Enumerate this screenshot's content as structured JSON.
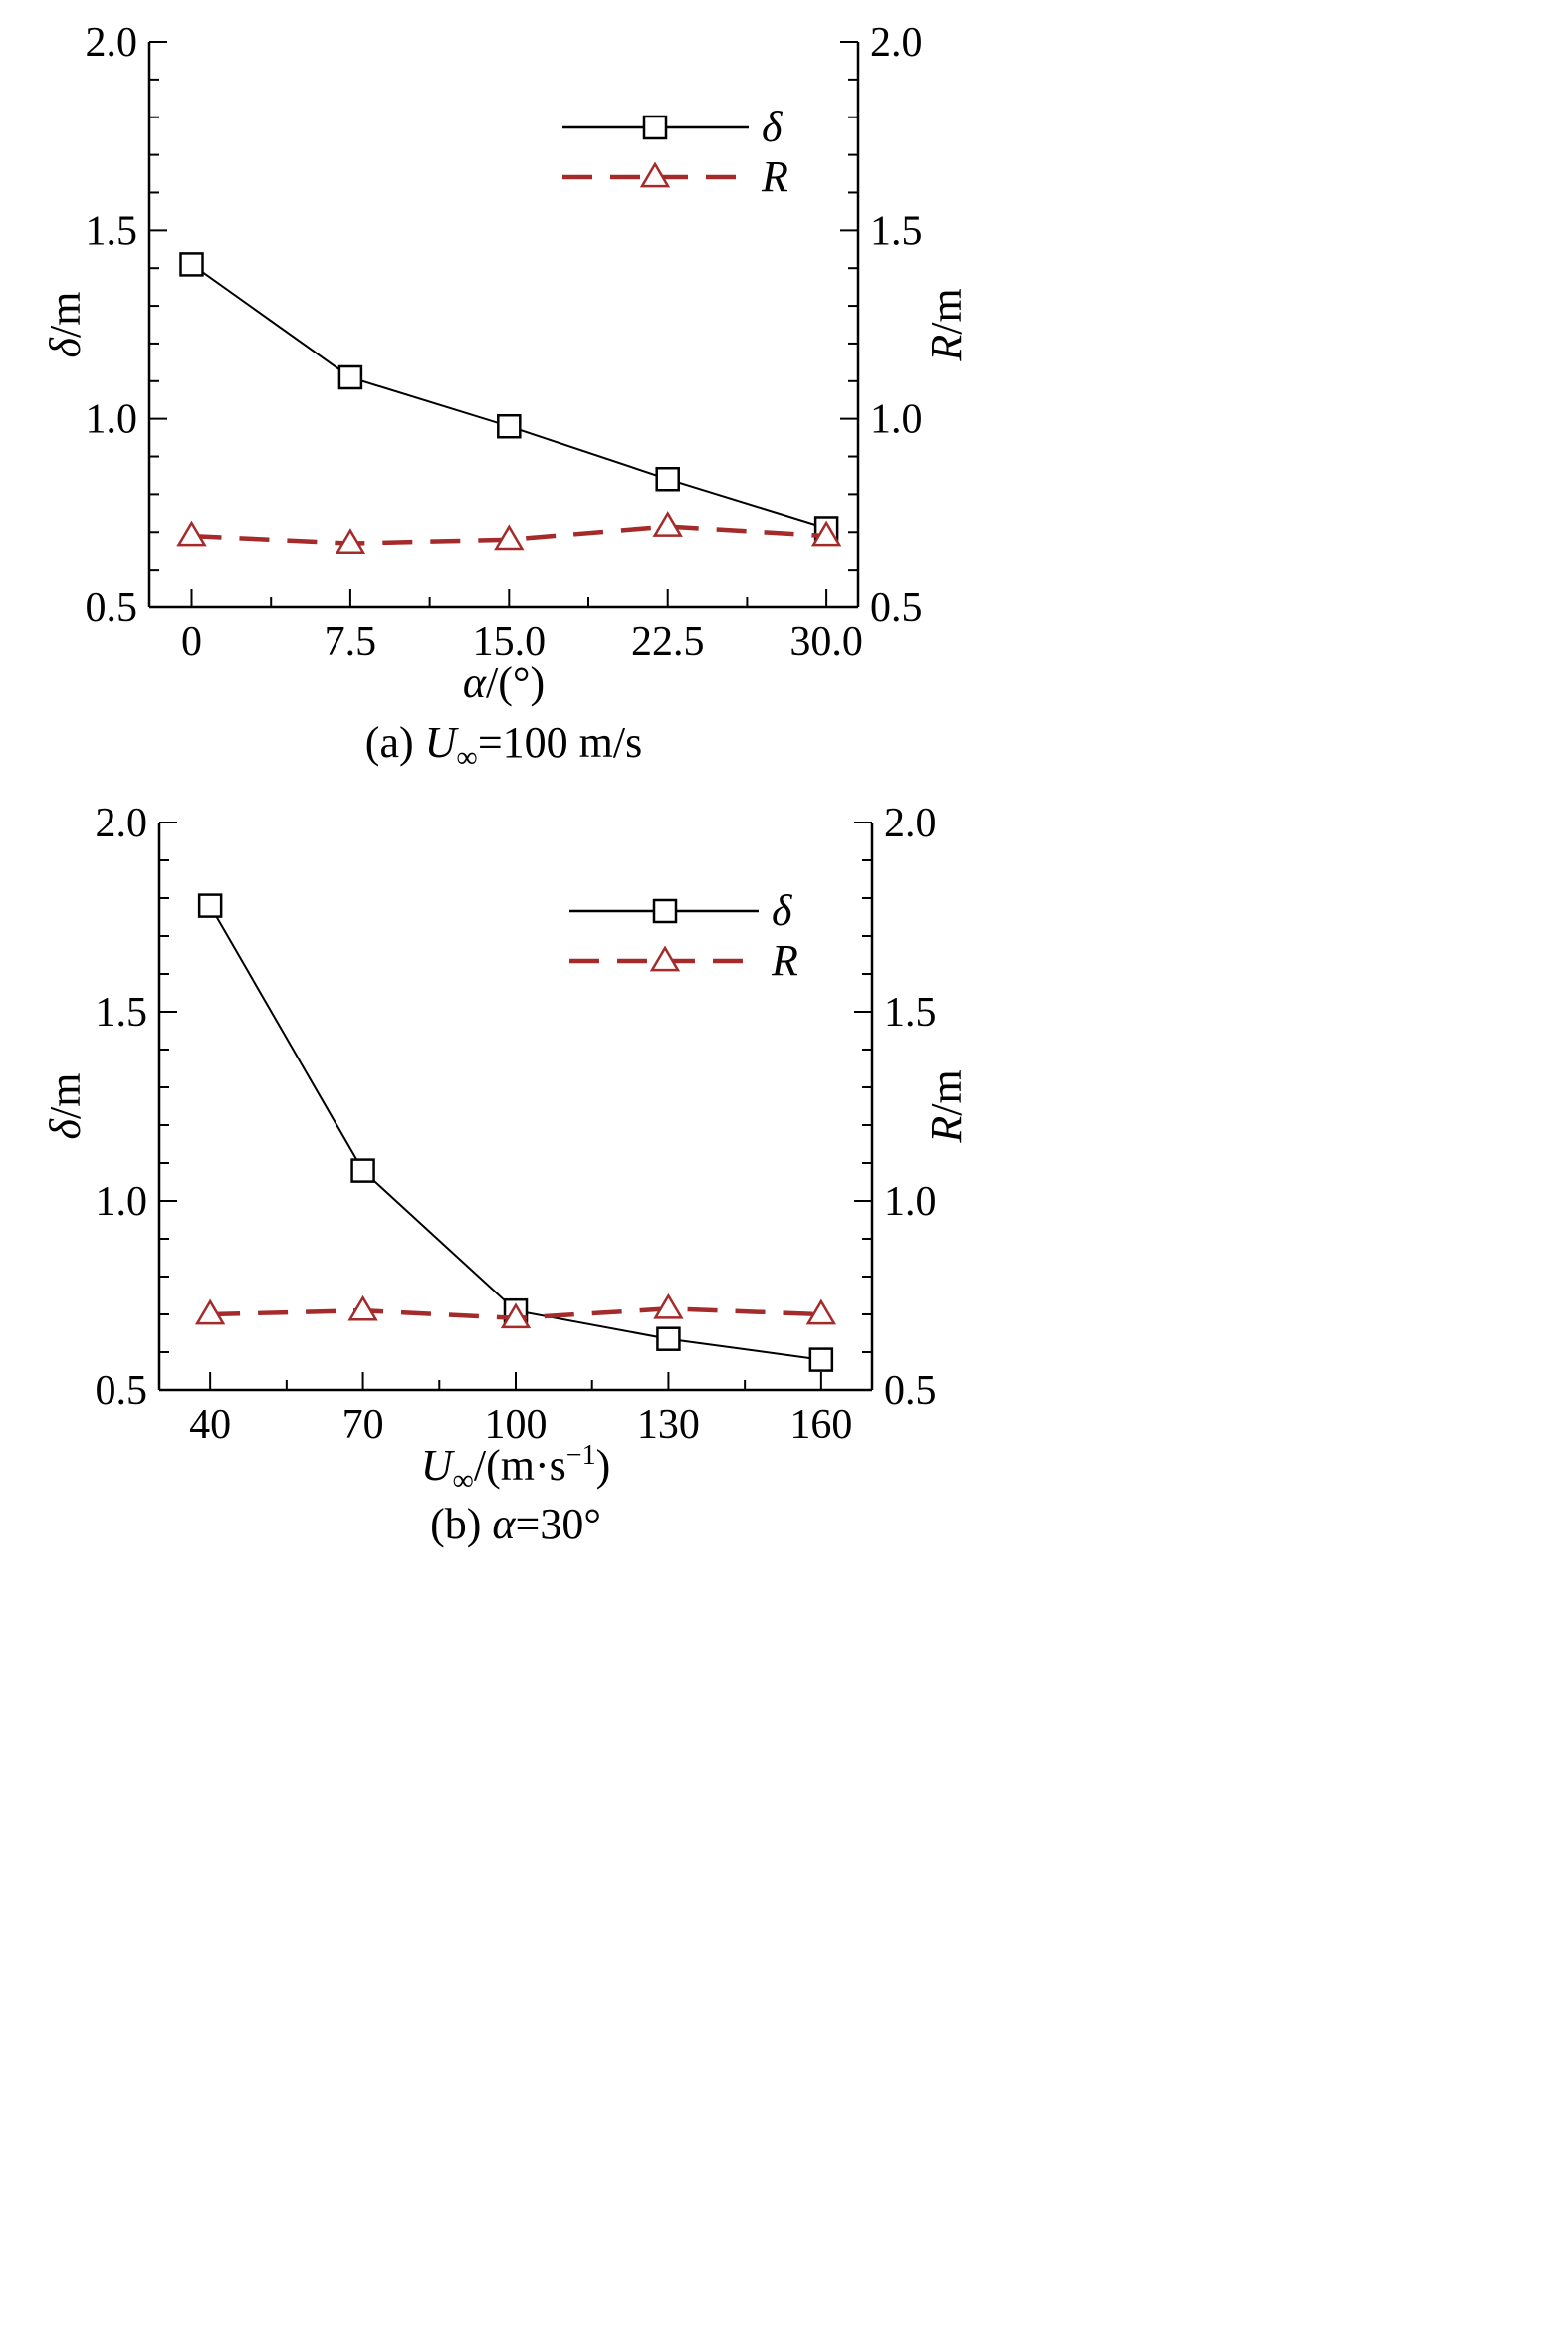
{
  "chart_data": [
    {
      "type": "line",
      "caption": "(a) U∞=100 m/s",
      "caption_parts": {
        "prefix": "(a) ",
        "var": "U",
        "sub": "∞",
        "suffix": "=100 m/s"
      },
      "xlabel": "α/(°)",
      "xlabel_parts": {
        "var": "α",
        "rest": "/(°)"
      },
      "ylabel_left": "δ/m",
      "ylabel_left_parts": {
        "var": "δ",
        "rest": "/m"
      },
      "ylabel_right": "R/m",
      "ylabel_right_parts": {
        "var": "R",
        "rest": "/m"
      },
      "x": [
        0,
        7.5,
        15.0,
        22.5,
        30.0
      ],
      "x_ticks": [
        "0",
        "7.5",
        "15.0",
        "22.5",
        "30.0"
      ],
      "xlim": [
        -2,
        31.5
      ],
      "ylim": [
        0.5,
        2.0
      ],
      "y_ticks": [
        "0.5",
        "1.0",
        "1.5",
        "2.0"
      ],
      "legend_position": "top-right",
      "series": [
        {
          "name": "δ",
          "axis": "left",
          "marker": "square",
          "line_style": "solid",
          "color": "#000000",
          "values": [
            1.41,
            1.11,
            0.98,
            0.84,
            0.71
          ]
        },
        {
          "name": "R",
          "axis": "right",
          "marker": "triangle",
          "line_style": "dashed",
          "color": "#A52A2A",
          "values": [
            0.69,
            0.67,
            0.68,
            0.715,
            0.69
          ]
        }
      ]
    },
    {
      "type": "line",
      "caption": "(b) α=30°",
      "caption_parts": {
        "prefix": "(b) ",
        "var": "α",
        "sub": "",
        "suffix": "=30°"
      },
      "xlabel": "U∞/(m·s−1)",
      "xlabel_parts": {
        "var": "U",
        "sub": "∞",
        "rest": "/(m·s",
        "sup": "−1",
        "end": ")"
      },
      "ylabel_left": "δ/m",
      "ylabel_left_parts": {
        "var": "δ",
        "rest": "/m"
      },
      "ylabel_right": "R/m",
      "ylabel_right_parts": {
        "var": "R",
        "rest": "/m"
      },
      "x": [
        40,
        70,
        100,
        130,
        160
      ],
      "x_ticks": [
        "40",
        "70",
        "100",
        "130",
        "160"
      ],
      "xlim": [
        30,
        170
      ],
      "ylim": [
        0.5,
        2.0
      ],
      "y_ticks": [
        "0.5",
        "1.0",
        "1.5",
        "2.0"
      ],
      "legend_position": "top-right",
      "series": [
        {
          "name": "δ",
          "axis": "left",
          "marker": "square",
          "line_style": "solid",
          "color": "#000000",
          "values": [
            1.78,
            1.08,
            0.71,
            0.635,
            0.58
          ]
        },
        {
          "name": "R",
          "axis": "right",
          "marker": "triangle",
          "line_style": "dashed",
          "color": "#A52A2A",
          "values": [
            0.7,
            0.71,
            0.69,
            0.715,
            0.7
          ]
        }
      ]
    }
  ]
}
